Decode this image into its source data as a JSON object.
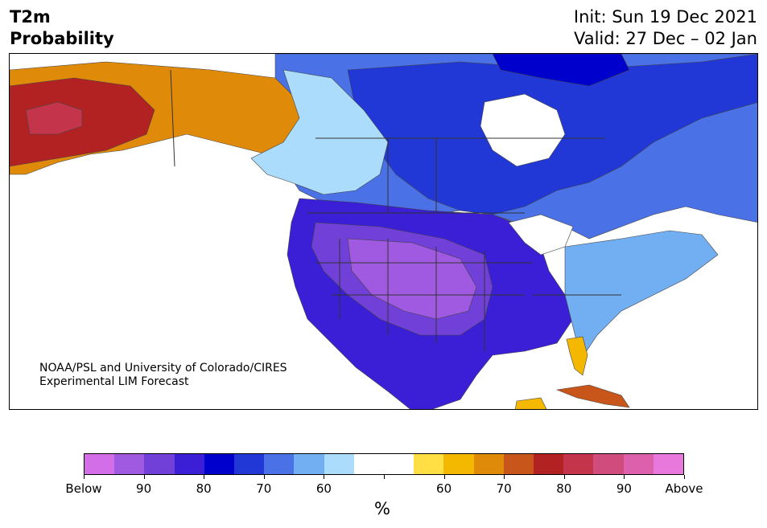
{
  "header": {
    "title_line1": "T2m",
    "title_line2": "Probability",
    "init": "Init: Sun 19 Dec 2021",
    "valid": "Valid: 27 Dec – 02 Jan"
  },
  "credit": {
    "line1": "NOAA/PSL and University of Colorado/CIRES",
    "line2": "Experimental LIM Forecast"
  },
  "colorbar": {
    "colors": [
      "#d46ee8",
      "#a05ae2",
      "#7140d8",
      "#3a1fd6",
      "#0000cc",
      "#2138d6",
      "#4a72e6",
      "#72aef2",
      "#acdcfc",
      "#ffffff",
      "#ffffff",
      "#ffdf44",
      "#f4b800",
      "#e08a0a",
      "#c8561a",
      "#b22222",
      "#c4344a",
      "#d04c7c",
      "#dc60ac",
      "#e878dc"
    ],
    "tick_labels": [
      "Below",
      "90",
      "80",
      "70",
      "60",
      "",
      "60",
      "70",
      "80",
      "90",
      "Above"
    ],
    "units": "%"
  },
  "map_colors": {
    "below_strong": "#a05ae2",
    "below_mid": "#7140d8",
    "below": "#3a1fd6",
    "below_70": "#0000cc",
    "below_65": "#2138d6",
    "below_60": "#4a72e6",
    "below_55": "#72aef2",
    "below_50": "#acdcfc",
    "above_55": "#ffdf44",
    "above_60": "#f4b800",
    "above_65": "#e08a0a",
    "above_70": "#c8561a",
    "above_75": "#b22222",
    "above_80": "#c4344a"
  }
}
